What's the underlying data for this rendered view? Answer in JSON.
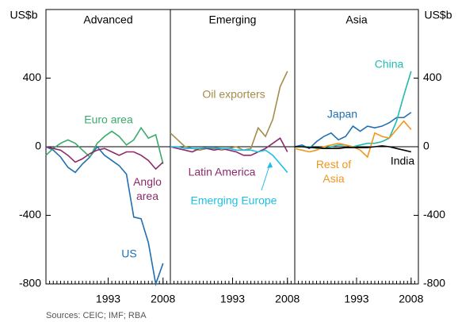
{
  "chart_data": [
    {
      "type": "line",
      "title": "Advanced",
      "ylabel": "US$b",
      "x": [
        1976,
        1978,
        1980,
        1982,
        1984,
        1986,
        1988,
        1990,
        1992,
        1994,
        1996,
        1998,
        2000,
        2002,
        2004,
        2006,
        2008
      ],
      "xlim": [
        1976,
        2010
      ],
      "xticks": [
        1993,
        2008
      ],
      "ylim": [
        -800,
        800
      ],
      "yticks": [
        -800,
        -400,
        0,
        400
      ],
      "series": [
        {
          "name": "US",
          "color": "#1f6fb2",
          "values": [
            0,
            -20,
            -60,
            -120,
            -150,
            -100,
            -60,
            0,
            -50,
            -80,
            -110,
            -160,
            -410,
            -420,
            -560,
            -800,
            -680
          ]
        },
        {
          "name": "Euro area",
          "color": "#3aab6c",
          "values": [
            -50,
            -10,
            20,
            40,
            20,
            -20,
            -60,
            20,
            60,
            90,
            60,
            10,
            40,
            110,
            50,
            70,
            -100
          ]
        },
        {
          "name": "Anglo area",
          "color": "#8c2b6a",
          "values": [
            0,
            -10,
            -20,
            -50,
            -90,
            -70,
            -40,
            -20,
            -10,
            -30,
            -50,
            -30,
            -30,
            -50,
            -80,
            -130,
            -90
          ]
        }
      ]
    },
    {
      "type": "line",
      "title": "Emerging",
      "x": [
        1976,
        1978,
        1980,
        1982,
        1984,
        1986,
        1988,
        1990,
        1992,
        1994,
        1996,
        1998,
        2000,
        2002,
        2004,
        2006,
        2008
      ],
      "xlim": [
        1976,
        2010
      ],
      "xticks": [
        1993,
        2008
      ],
      "ylim": [
        -800,
        800
      ],
      "series": [
        {
          "name": "Oil exporters",
          "color": "#a38d4b",
          "values": [
            80,
            40,
            0,
            -10,
            -20,
            -10,
            -10,
            -20,
            -10,
            0,
            -20,
            -10,
            110,
            60,
            160,
            350,
            440
          ]
        },
        {
          "name": "Latin America",
          "color": "#8c2b6a",
          "values": [
            0,
            -10,
            -20,
            -30,
            -10,
            -10,
            -20,
            -10,
            -20,
            -30,
            -50,
            -50,
            -30,
            -10,
            20,
            50,
            -30
          ]
        },
        {
          "name": "Emerging Europe",
          "color": "#1ebfe3",
          "values": [
            0,
            0,
            -10,
            -10,
            -10,
            -5,
            -5,
            -10,
            -10,
            -20,
            -20,
            -20,
            -30,
            -20,
            -50,
            -100,
            -150
          ]
        }
      ]
    },
    {
      "type": "line",
      "title": "Asia",
      "y2label": "US$b",
      "x": [
        1976,
        1978,
        1980,
        1982,
        1984,
        1986,
        1988,
        1990,
        1992,
        1994,
        1996,
        1998,
        2000,
        2002,
        2004,
        2006,
        2008
      ],
      "xlim": [
        1976,
        2010
      ],
      "xticks": [
        1993,
        2008
      ],
      "ylim": [
        -800,
        800
      ],
      "y2lim": [
        -800,
        800
      ],
      "y2ticks": [
        -800,
        -400,
        0,
        400
      ],
      "series": [
        {
          "name": "Japan",
          "color": "#1f6fb2",
          "values": [
            0,
            10,
            -10,
            30,
            60,
            80,
            40,
            60,
            120,
            90,
            120,
            110,
            120,
            140,
            170,
            170,
            200
          ]
        },
        {
          "name": "China",
          "color": "#1fbcb0",
          "values": [
            0,
            0,
            0,
            -10,
            -10,
            0,
            10,
            10,
            0,
            10,
            20,
            20,
            30,
            50,
            150,
            300,
            440
          ]
        },
        {
          "name": "Rest of Asia",
          "color": "#f0961e",
          "values": [
            -10,
            -20,
            -30,
            -20,
            0,
            10,
            20,
            10,
            0,
            -20,
            -60,
            80,
            60,
            50,
            100,
            150,
            100
          ]
        },
        {
          "name": "India",
          "color": "#000000",
          "values": [
            0,
            0,
            -5,
            -5,
            -10,
            -10,
            -10,
            -5,
            -5,
            -5,
            -5,
            0,
            5,
            0,
            -10,
            -20,
            -30
          ]
        }
      ]
    }
  ],
  "source": "Sources: CEIC; IMF; RBA"
}
